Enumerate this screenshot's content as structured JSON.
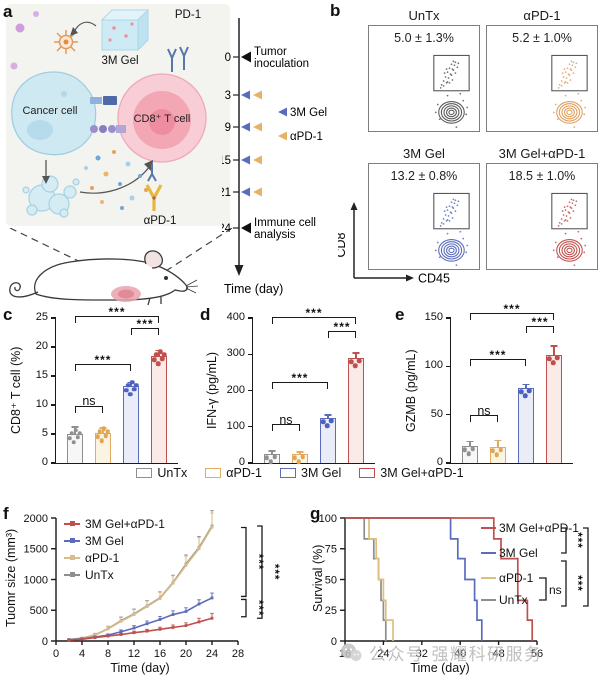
{
  "panels": {
    "a": {
      "label": "a",
      "schematic": {
        "gel": "3M Gel",
        "pd1": "PD-1",
        "cancer_cell": "Cancer cell",
        "t_cell": "CD8⁺ T cell",
        "apd1": "αPD-1"
      },
      "timeline": {
        "days": [
          "0",
          "3",
          "9",
          "15",
          "21",
          "24"
        ],
        "event_start": [
          "Tumor",
          "inoculation"
        ],
        "event_end": [
          "Immune cell",
          "analysis"
        ],
        "legend_gel": "3M Gel",
        "legend_apd1": "αPD-1",
        "axis_label": "Time (day)"
      }
    },
    "b": {
      "label": "b",
      "y_axis": "CD8",
      "x_axis": "CD45",
      "plots": [
        {
          "title": "UnTx",
          "value": "5.0 ± 1.3%",
          "color": "#5a5a5a"
        },
        {
          "title": "αPD-1",
          "value": "5.2 ± 1.0%",
          "color": "#dd9f5e"
        },
        {
          "title": "3M Gel",
          "value": "13.2 ± 0.8%",
          "color": "#5b6cbb"
        },
        {
          "title": "3M Gel+αPD-1",
          "value": "18.5 ± 1.0%",
          "color": "#c0504d"
        }
      ]
    },
    "c": {
      "label": "c"
    },
    "d": {
      "label": "d"
    },
    "e": {
      "label": "e"
    },
    "f": {
      "label": "f"
    },
    "g": {
      "label": "g"
    }
  },
  "groups": [
    {
      "name": "UnTx",
      "color": "#8f8f8f",
      "fill": "#f7f7f7",
      "dot": "#909090"
    },
    {
      "name": "αPD-1",
      "color": "#e0ac63",
      "fill": "#fcf4e3",
      "dot": "#dfa657"
    },
    {
      "name": "3M Gel",
      "color": "#5b6cbb",
      "fill": "#eaedf8",
      "dot": "#4d62c0"
    },
    {
      "name": "3M Gel+αPD-1",
      "color": "#c0504d",
      "fill": "#faeae8",
      "dot": "#c0504d"
    }
  ],
  "chart_data": [
    {
      "id": "c",
      "type": "bar",
      "ylabel": "CD8⁺ T cell (%)",
      "ylim": [
        0,
        25
      ],
      "yticks": [
        0,
        5,
        10,
        15,
        20,
        25
      ],
      "categories": [
        "UnTx",
        "αPD-1",
        "3M Gel",
        "3M Gel+αPD-1"
      ],
      "values": [
        5.0,
        5.2,
        13.2,
        18.5
      ],
      "errors": [
        1.3,
        1.0,
        0.8,
        1.0
      ],
      "n_replicates": 6,
      "sig": [
        {
          "from": 0,
          "to": 1,
          "y": 8.7,
          "label": "ns"
        },
        {
          "from": 0,
          "to": 2,
          "y": 15.8,
          "label": "***"
        },
        {
          "from": 2,
          "to": 3,
          "y": 22.0,
          "label": "***"
        },
        {
          "from": 0,
          "to": 3,
          "y": 24.2,
          "label": "***"
        }
      ]
    },
    {
      "id": "d",
      "type": "bar",
      "ylabel": "IFN-γ (pg/mL)",
      "ylim": [
        0,
        400
      ],
      "yticks": [
        0,
        100,
        200,
        300,
        400
      ],
      "categories": [
        "UnTx",
        "αPD-1",
        "3M Gel",
        "3M Gel+αPD-1"
      ],
      "values": [
        25,
        25,
        125,
        290
      ],
      "errors": [
        10,
        8,
        10,
        15
      ],
      "n_replicates": 3,
      "sig": [
        {
          "from": 0,
          "to": 1,
          "y": 88,
          "label": "ns"
        },
        {
          "from": 0,
          "to": 2,
          "y": 203,
          "label": "***"
        },
        {
          "from": 2,
          "to": 3,
          "y": 345,
          "label": "***"
        },
        {
          "from": 0,
          "to": 3,
          "y": 384,
          "label": "***"
        }
      ]
    },
    {
      "id": "e",
      "type": "bar",
      "ylabel": "GZMB (pg/mL)",
      "ylim": [
        0,
        150
      ],
      "yticks": [
        0,
        50,
        100,
        150
      ],
      "categories": [
        "UnTx",
        "αPD-1",
        "3M Gel",
        "3M Gel+αPD-1"
      ],
      "values": [
        18,
        17,
        78,
        112
      ],
      "errors": [
        5,
        7,
        4,
        10
      ],
      "n_replicates": 3,
      "sig": [
        {
          "from": 0,
          "to": 1,
          "y": 42,
          "label": "ns"
        },
        {
          "from": 0,
          "to": 2,
          "y": 100,
          "label": "***"
        },
        {
          "from": 2,
          "to": 3,
          "y": 134,
          "label": "***"
        },
        {
          "from": 0,
          "to": 3,
          "y": 148,
          "label": "***"
        }
      ]
    },
    {
      "id": "f",
      "type": "line",
      "ylabel": "Tuomr size (mm³)",
      "xlabel": "Time (day)",
      "ylim": [
        0,
        2000
      ],
      "yticks": [
        0,
        500,
        1000,
        1500,
        2000
      ],
      "xlim": [
        0,
        28
      ],
      "xticks": [
        0,
        4,
        8,
        12,
        16,
        20,
        24,
        28
      ],
      "x": [
        2,
        4,
        6,
        8,
        10,
        12,
        14,
        16,
        18,
        20,
        22,
        24
      ],
      "series": [
        {
          "name": "UnTx",
          "color": "#8e8e8e",
          "y": [
            25,
            45,
            100,
            200,
            330,
            440,
            570,
            700,
            950,
            1250,
            1520,
            1870
          ],
          "err": [
            10,
            15,
            25,
            40,
            60,
            80,
            90,
            100,
            120,
            150,
            180,
            250
          ]
        },
        {
          "name": "αPD-1",
          "color": "#d8bc8a",
          "y": [
            22,
            42,
            95,
            195,
            320,
            430,
            560,
            690,
            940,
            1230,
            1500,
            1850
          ],
          "err": [
            10,
            15,
            25,
            40,
            60,
            80,
            90,
            100,
            120,
            150,
            180,
            230
          ]
        },
        {
          "name": "3M Gel",
          "color": "#5b6cbb",
          "y": [
            20,
            35,
            65,
            95,
            150,
            210,
            280,
            350,
            430,
            480,
            600,
            700
          ],
          "err": [
            8,
            10,
            15,
            20,
            30,
            40,
            45,
            50,
            60,
            60,
            70,
            80
          ]
        },
        {
          "name": "3M Gel+αPD-1",
          "color": "#c0504d",
          "y": [
            15,
            28,
            55,
            80,
            105,
            135,
            160,
            190,
            220,
            250,
            310,
            370
          ],
          "err": [
            5,
            8,
            12,
            15,
            20,
            25,
            30,
            35,
            40,
            45,
            60,
            80
          ]
        }
      ],
      "legend_order": [
        "3M Gel+αPD-1",
        "3M Gel",
        "αPD-1",
        "UnTx"
      ],
      "sig": [
        {
          "a": "UnTx",
          "b": "3M Gel",
          "label": "***"
        },
        {
          "a": "3M Gel",
          "b": "3M Gel+αPD-1",
          "label": "***"
        },
        {
          "a": "UnTx",
          "b": "3M Gel+αPD-1",
          "label": "***",
          "outer": true
        }
      ]
    },
    {
      "id": "g",
      "type": "step",
      "ylabel": "Survival (%)",
      "xlabel": "Time (day)",
      "ylim": [
        0,
        100
      ],
      "yticks": [
        0,
        25,
        50,
        75,
        100
      ],
      "xlim": [
        16,
        56
      ],
      "xticks": [
        16,
        24,
        32,
        40,
        48,
        56
      ],
      "series": [
        {
          "name": "UnTx",
          "color": "#8e8e8e",
          "points": [
            [
              16,
              100
            ],
            [
              20,
              100
            ],
            [
              20,
              83
            ],
            [
              22,
              83
            ],
            [
              22,
              67
            ],
            [
              23,
              67
            ],
            [
              23,
              50
            ],
            [
              23.5,
              50
            ],
            [
              23.5,
              33
            ],
            [
              24,
              33
            ],
            [
              24,
              17
            ],
            [
              24.5,
              17
            ],
            [
              24.5,
              0
            ]
          ]
        },
        {
          "name": "αPD-1",
          "color": "#ddbf7e",
          "points": [
            [
              16,
              100
            ],
            [
              21,
              100
            ],
            [
              21,
              83
            ],
            [
              22.5,
              83
            ],
            [
              22.5,
              67
            ],
            [
              23,
              67
            ],
            [
              23,
              50
            ],
            [
              24,
              50
            ],
            [
              24,
              33
            ],
            [
              24.5,
              33
            ],
            [
              24.5,
              17
            ],
            [
              26,
              17
            ],
            [
              26,
              0
            ]
          ]
        },
        {
          "name": "3M Gel",
          "color": "#5b6cbb",
          "points": [
            [
              16,
              100
            ],
            [
              38,
              100
            ],
            [
              38,
              83
            ],
            [
              39.5,
              83
            ],
            [
              39.5,
              67
            ],
            [
              41,
              67
            ],
            [
              41,
              50
            ],
            [
              43,
              50
            ],
            [
              43,
              33
            ],
            [
              43.5,
              33
            ],
            [
              43.5,
              17
            ],
            [
              44.5,
              17
            ],
            [
              44.5,
              0
            ]
          ]
        },
        {
          "name": "3M Gel+αPD-1",
          "color": "#c0504d",
          "points": [
            [
              16,
              100
            ],
            [
              47,
              100
            ],
            [
              47,
              83
            ],
            [
              48.5,
              83
            ],
            [
              48.5,
              67
            ],
            [
              52,
              67
            ],
            [
              52,
              33
            ],
            [
              54,
              33
            ],
            [
              54,
              17
            ],
            [
              55,
              17
            ],
            [
              55,
              0
            ]
          ]
        }
      ],
      "legend_order": [
        "3M Gel+αPD-1",
        "3M Gel",
        "αPD-1",
        "UnTx"
      ],
      "legend_ns_label": "ns",
      "sig": [
        {
          "label": "***"
        },
        {
          "label": "***"
        },
        {
          "label": "***"
        }
      ]
    }
  ],
  "watermark": {
    "icon": "wechat-icon",
    "prefix": "公众号",
    "name": "强耀科研服务"
  }
}
